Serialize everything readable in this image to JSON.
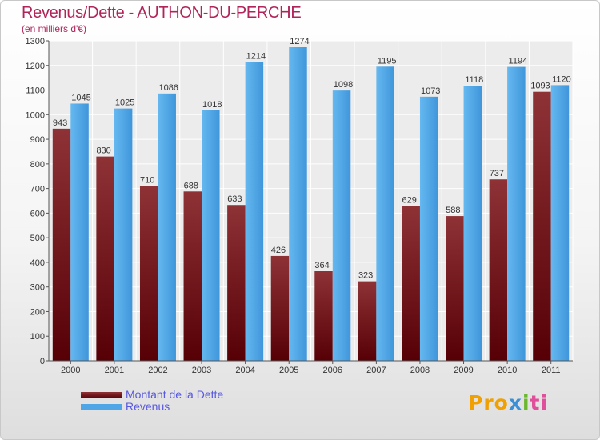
{
  "title": "Revenus/Dette - AUTHON-DU-PERCHE",
  "subtitle": "(en milliers d'€)",
  "logo": {
    "text": [
      "Pro",
      "x",
      "i",
      "ti"
    ],
    "colors": [
      "#f0a000",
      "#3a8fd6",
      "#6ab82e",
      "#e04f9a"
    ]
  },
  "chart_data": {
    "type": "bar",
    "title": "Revenus/Dette - AUTHON-DU-PERCHE",
    "subtitle": "(en milliers d'€)",
    "xlabel": "",
    "ylabel": "",
    "categories": [
      "2000",
      "2001",
      "2002",
      "2003",
      "2004",
      "2005",
      "2006",
      "2007",
      "2008",
      "2009",
      "2010",
      "2011"
    ],
    "ylim": [
      0,
      1300
    ],
    "yticks": [
      0,
      100,
      200,
      300,
      400,
      500,
      600,
      700,
      800,
      900,
      1000,
      1100,
      1200,
      1300
    ],
    "grid": true,
    "legend_position": "bottom-left",
    "series": [
      {
        "name": "Montant de la Dette",
        "color": "#7a1a1e",
        "values": [
          943,
          830,
          710,
          688,
          633,
          426,
          364,
          323,
          629,
          588,
          737,
          1093
        ]
      },
      {
        "name": "Revenus",
        "color": "#4fa6e6",
        "values": [
          1045,
          1025,
          1086,
          1018,
          1214,
          1274,
          1098,
          1195,
          1073,
          1118,
          1194,
          1120
        ]
      }
    ]
  }
}
